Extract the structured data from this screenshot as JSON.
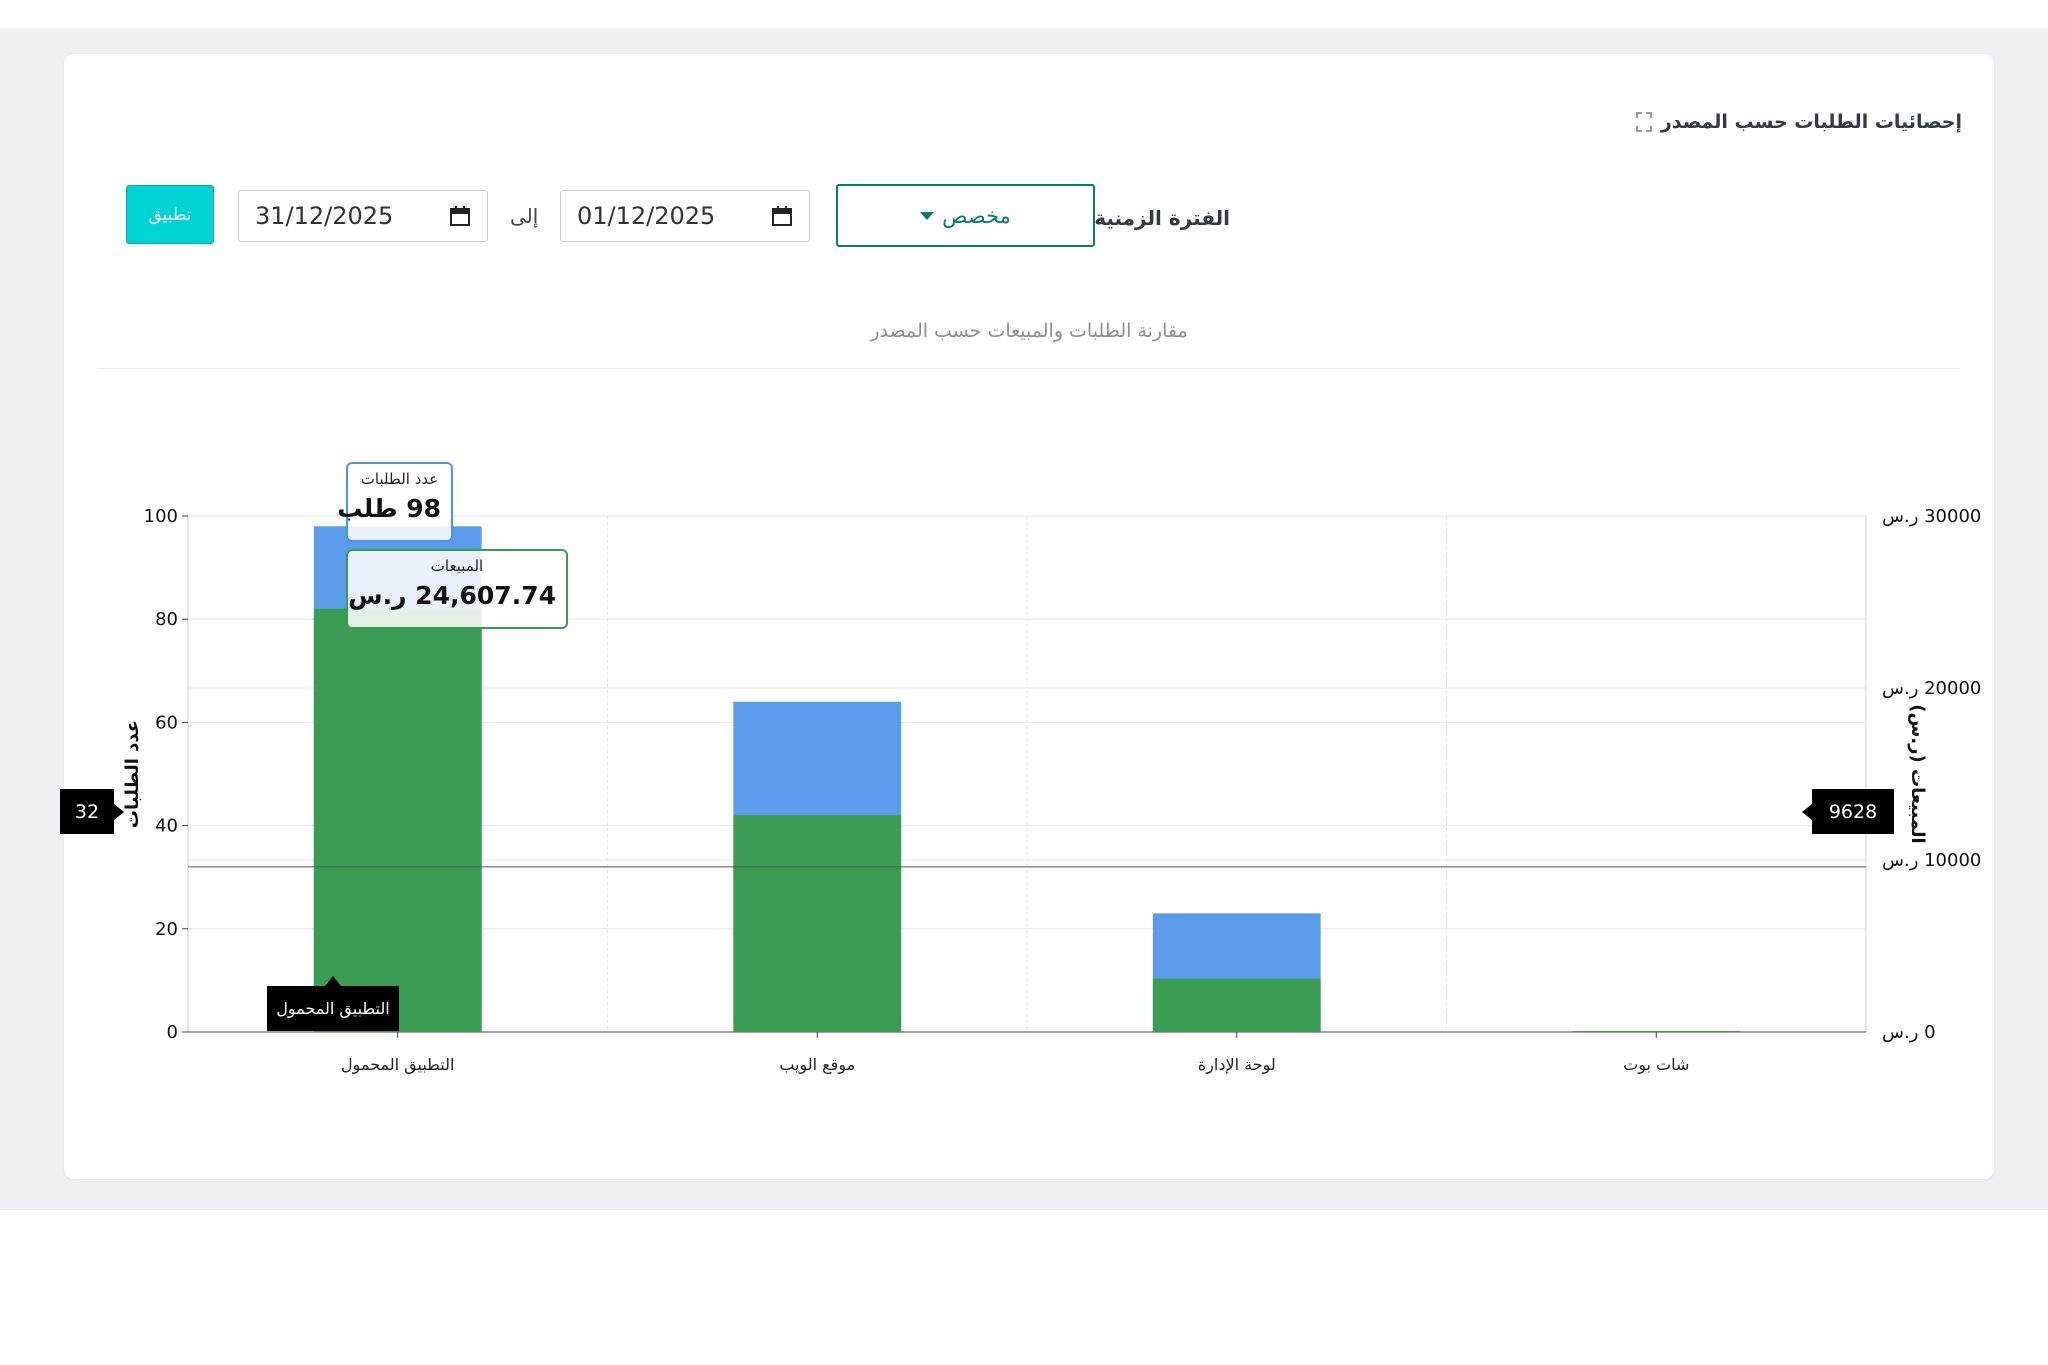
{
  "header": {
    "title": "إحصائيات الطلبات حسب المصدر",
    "expand_icon": "expand-icon"
  },
  "filters": {
    "period_label": "الفترة الزمنية:",
    "period_selected": "مخصص",
    "date_from": "01/12/2025",
    "to_label": "إلى",
    "date_to": "31/12/2025",
    "apply_label": "تطبيق",
    "calendar_icon": "calendar-icon"
  },
  "colors": {
    "accent": "#0a7c6e",
    "apply_button": "#00d3d3",
    "orders_series": "#4d94e8",
    "sales_series": "#3a9d4c"
  },
  "tooltip": {
    "orders_label": "عدد الطلبات",
    "orders_value": "98 طلب",
    "sales_label": "المبيعات",
    "sales_value": "24,607.74 ر.س"
  },
  "crosshair": {
    "left_value": "32",
    "right_value": "9628",
    "x_label": "التطبيق المحمول"
  },
  "chart_data": {
    "type": "bar",
    "title": "مقارنة الطلبات والمبيعات حسب المصدر",
    "categories": [
      "التطبيق المحمول",
      "موقع الويب",
      "لوحة الإدارة",
      "شات بوت"
    ],
    "series": [
      {
        "name": "عدد الطلبات",
        "axis": "left",
        "color": "#4d94e8",
        "values": [
          98,
          64,
          23,
          0
        ]
      },
      {
        "name": "المبيعات",
        "axis": "right",
        "color": "#3a9d4c",
        "values": [
          24607.74,
          12600,
          3100,
          0
        ]
      }
    ],
    "ylabel": "عدد الطلبات",
    "y2label": "المبيعات (ر.س)",
    "ylim": [
      0,
      100
    ],
    "y2lim": [
      0,
      30000
    ],
    "yticks": [
      "0",
      "20",
      "40",
      "60",
      "80",
      "100"
    ],
    "y2ticks": [
      "0 ر.س",
      "10000 ر.س",
      "20000 ر.س",
      "30000 ر.س"
    ],
    "grid": true,
    "overlay": true
  }
}
